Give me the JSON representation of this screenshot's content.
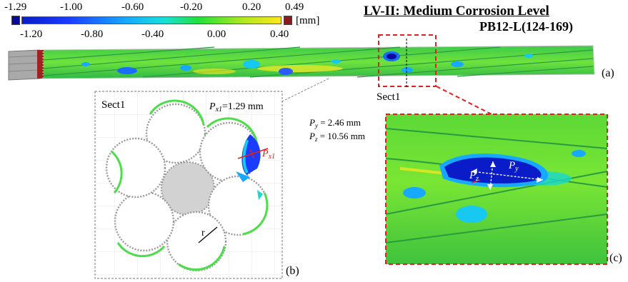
{
  "colorbar": {
    "top_labels": [
      "-1.29",
      "-1.00",
      "-0.60",
      "-0.20",
      "0.20",
      "0.49"
    ],
    "bottom_labels": [
      "-1.20",
      "-0.80",
      "-0.40",
      "0.00",
      "0.40"
    ],
    "unit": "[mm]",
    "colors": [
      "#0a0a9a",
      "#1a3cff",
      "#17a8ff",
      "#18e0d8",
      "#22e03a",
      "#b4e81e",
      "#ffe61e",
      "#8b1a1a"
    ]
  },
  "title": {
    "main": "LV-II:  Medium Corrosion Level",
    "sub": "PB12-L(124-169)"
  },
  "panels": {
    "a": {
      "tag": "(a)",
      "section_label": "Sect1"
    },
    "b": {
      "tag": "(b)",
      "section_label": "Sect1",
      "measure_prefix": "P",
      "measure_sub": "x1",
      "measure_value": "=1.29  mm",
      "radius_label": "r"
    },
    "c": {
      "tag": "(c)",
      "py": {
        "prefix": "P",
        "sub": "y",
        "value": " = 2.46  mm"
      },
      "pz": {
        "prefix": "P",
        "sub": "z",
        "value": " = 10.56  mm"
      }
    }
  }
}
